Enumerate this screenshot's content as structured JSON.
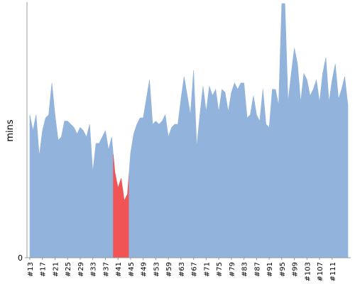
{
  "chart_data": {
    "type": "area",
    "y_label": "mins",
    "ylim": [
      0,
      8
    ],
    "yticks": [
      0
    ],
    "color": "#92b4dc",
    "categories": [
      "#13",
      null,
      null,
      null,
      "#17",
      null,
      null,
      null,
      "#21",
      null,
      null,
      null,
      "#25",
      null,
      null,
      null,
      "#29",
      null,
      null,
      null,
      "#33",
      null,
      null,
      null,
      "#37",
      null,
      null,
      null,
      "#41",
      null,
      null,
      null,
      "#45",
      null,
      null,
      null,
      "#49",
      null,
      null,
      null,
      "#53",
      null,
      null,
      null,
      "#59",
      null,
      null,
      null,
      "#63",
      null,
      null,
      null,
      "#67",
      null,
      null,
      null,
      "#71",
      null,
      null,
      null,
      "#75",
      null,
      null,
      null,
      "#79",
      null,
      null,
      null,
      "#83",
      null,
      null,
      null,
      "#87",
      null,
      null,
      null,
      "#91",
      null,
      null,
      null,
      "#95",
      null,
      null,
      null,
      "#99",
      null,
      null,
      null,
      "#103",
      null,
      null,
      null,
      "#107",
      null,
      null,
      null,
      "#111",
      null,
      null,
      null,
      null,
      null
    ],
    "values": [
      4.5,
      4.0,
      4.5,
      3.2,
      4.0,
      4.4,
      4.5,
      5.5,
      4.5,
      3.7,
      3.8,
      4.3,
      4.3,
      4.2,
      4.1,
      3.9,
      4.1,
      4.0,
      3.8,
      4.2,
      2.7,
      3.6,
      3.6,
      3.8,
      4.0,
      3.4,
      3.8,
      2.7,
      2.2,
      2.5,
      1.8,
      2.0,
      3.3,
      3.9,
      4.2,
      4.4,
      4.4,
      5.0,
      5.6,
      4.2,
      4.3,
      4.2,
      4.3,
      4.5,
      3.8,
      4.1,
      4.2,
      4.2,
      5.0,
      5.7,
      5.1,
      4.5,
      5.9,
      3.5,
      4.5,
      5.4,
      4.6,
      5.4,
      5.1,
      5.3,
      4.6,
      5.3,
      5.2,
      4.6,
      5.2,
      5.5,
      5.3,
      5.5,
      5.5,
      4.4,
      4.5,
      5.1,
      4.5,
      4.3,
      5.3,
      4.2,
      4.1,
      5.3,
      5.3,
      4.8,
      8.0,
      8.0,
      4.9,
      5.8,
      6.6,
      6.1,
      4.9,
      5.8,
      5.6,
      5.1,
      5.3,
      5.6,
      4.9,
      5.8,
      6.3,
      4.9,
      5.6,
      6.1,
      5.0,
      5.3,
      5.7,
      4.8
    ],
    "point_colors": [
      "#92b4dc",
      "#92b4dc",
      "#92b4dc",
      "#92b4dc",
      "#92b4dc",
      "#92b4dc",
      "#92b4dc",
      "#92b4dc",
      "#92b4dc",
      "#92b4dc",
      "#92b4dc",
      "#92b4dc",
      "#92b4dc",
      "#92b4dc",
      "#92b4dc",
      "#92b4dc",
      "#92b4dc",
      "#92b4dc",
      "#92b4dc",
      "#92b4dc",
      "#92b4dc",
      "#92b4dc",
      "#92b4dc",
      "#92b4dc",
      "#92b4dc",
      "#92b4dc",
      "#92b4dc",
      "#f05454",
      "#f05454",
      "#f05454",
      "#f05454",
      "#f05454",
      "#92b4dc",
      "#92b4dc",
      "#92b4dc",
      "#92b4dc",
      "#92b4dc",
      "#92b4dc",
      "#92b4dc",
      "#92b4dc",
      "#92b4dc",
      "#92b4dc",
      "#92b4dc",
      "#92b4dc",
      "#92b4dc",
      "#92b4dc",
      "#92b4dc",
      "#92b4dc",
      "#92b4dc",
      "#92b4dc",
      "#92b4dc",
      "#92b4dc",
      "#92b4dc",
      "#92b4dc",
      "#92b4dc",
      "#92b4dc",
      "#92b4dc",
      "#92b4dc",
      "#92b4dc",
      "#92b4dc",
      "#92b4dc",
      "#92b4dc",
      "#92b4dc",
      "#92b4dc",
      "#92b4dc",
      "#92b4dc",
      "#92b4dc",
      "#92b4dc",
      "#92b4dc",
      "#92b4dc",
      "#92b4dc",
      "#92b4dc",
      "#92b4dc",
      "#92b4dc",
      "#92b4dc",
      "#92b4dc",
      "#92b4dc",
      "#92b4dc",
      "#92b4dc",
      "#92b4dc",
      "#92b4dc",
      "#92b4dc",
      "#92b4dc",
      "#92b4dc",
      "#92b4dc",
      "#92b4dc",
      "#92b4dc",
      "#92b4dc",
      "#92b4dc",
      "#92b4dc",
      "#92b4dc",
      "#92b4dc",
      "#92b4dc",
      "#92b4dc",
      "#92b4dc",
      "#92b4dc",
      "#92b4dc",
      "#92b4dc",
      "#92b4dc",
      "#92b4dc",
      "#92b4dc",
      "#92b4dc"
    ]
  }
}
